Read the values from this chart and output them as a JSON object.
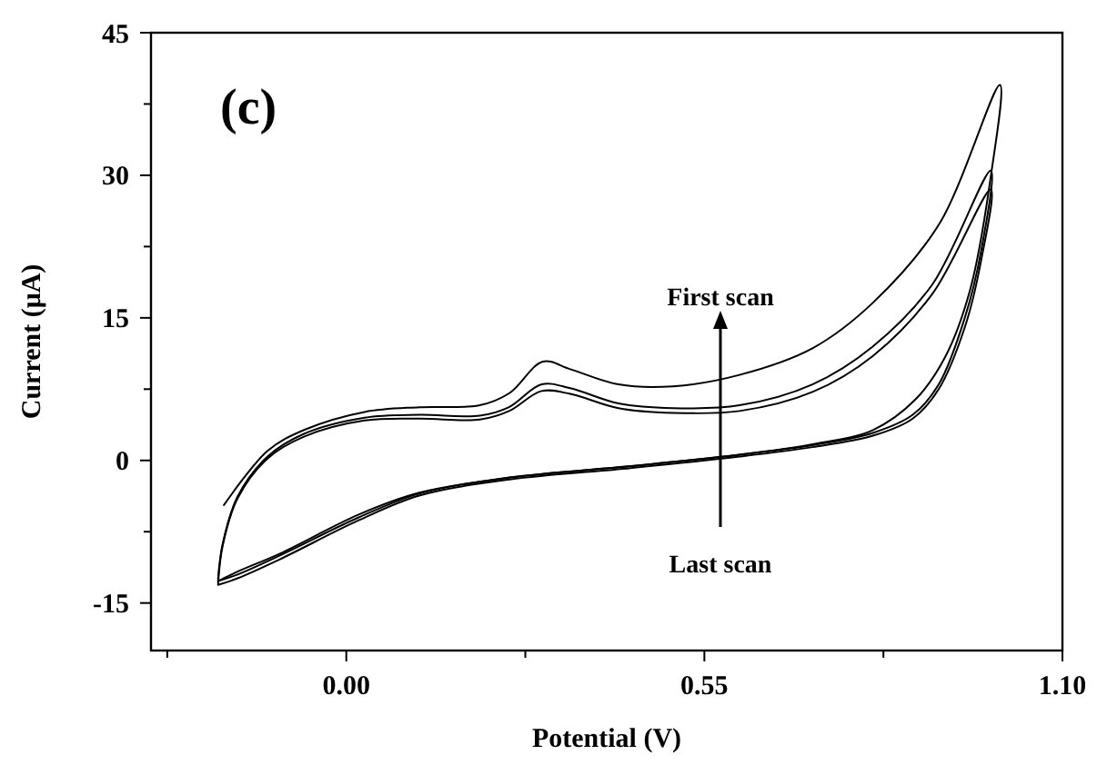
{
  "chart_data": {
    "type": "line",
    "title": "(c)",
    "xlabel": "Potential (V)",
    "ylabel": "Current (μA)",
    "xlim": [
      -0.3,
      1.1
    ],
    "xticks": [
      {
        "value": -0.275,
        "label": null
      },
      {
        "value": 0,
        "label": "0.00"
      },
      {
        "value": 0.275,
        "label": null
      },
      0.55,
      {
        "value": 0.825,
        "label": null
      },
      {
        "value": 1.1,
        "label": "1.10"
      }
    ],
    "ylim": [
      -20,
      45
    ],
    "yticks": [
      -15,
      {
        "value": -7.5,
        "label": null
      },
      0,
      {
        "value": 7.5,
        "label": null
      },
      15,
      {
        "value": 22.5,
        "label": null
      },
      30,
      {
        "value": 37.5,
        "label": null
      },
      45
    ],
    "grid": false,
    "line_style": "solid",
    "marker": "none",
    "series": [
      {
        "color": "#000000",
        "x": [
          -0.188,
          -0.121,
          -0.065,
          0.028,
          0.112,
          0.205,
          0.251,
          0.302,
          0.344,
          0.418,
          0.502,
          0.604,
          0.716,
          0.809,
          0.911,
          1.004,
          0.99,
          0.958,
          0.92,
          0.874,
          0.809,
          0.716,
          0.604,
          0.437,
          0.251,
          0.112,
          0.019,
          -0.102,
          -0.167,
          -0.197
        ],
        "values": [
          -4.7,
          1.0,
          3.2,
          5.1,
          5.6,
          5.8,
          7.1,
          10.4,
          9.6,
          8.0,
          7.8,
          9.0,
          11.8,
          16.6,
          24.9,
          39.5,
          29.9,
          17.9,
          10.9,
          6.4,
          3.2,
          1.7,
          0.6,
          -0.6,
          -1.8,
          -3.4,
          -5.7,
          -9.8,
          -11.7,
          -12.7
        ]
      },
      {
        "color": "#000000",
        "x": [
          -0.197,
          -0.19,
          -0.167,
          -0.121,
          -0.065,
          0.028,
          0.112,
          0.205,
          0.25,
          0.3,
          0.344,
          0.418,
          0.502,
          0.604,
          0.716,
          0.809,
          0.9,
          0.99,
          0.975,
          0.95,
          0.91,
          0.87,
          0.809,
          0.716,
          0.604,
          0.437,
          0.251,
          0.112,
          0.019,
          -0.102,
          -0.167,
          -0.197
        ],
        "values": [
          -12.5,
          -8.8,
          -3.8,
          0.4,
          2.8,
          4.5,
          4.8,
          4.7,
          5.6,
          8.0,
          7.6,
          6.0,
          5.5,
          5.8,
          8.0,
          12.0,
          18.5,
          30.5,
          22.0,
          15.0,
          8.0,
          4.8,
          2.9,
          1.6,
          0.6,
          -0.6,
          -1.8,
          -3.5,
          -6.0,
          -10.0,
          -12.0,
          -12.7
        ]
      },
      {
        "color": "#000000",
        "x": [
          -0.197,
          -0.19,
          -0.167,
          -0.121,
          -0.065,
          0.028,
          0.112,
          0.205,
          0.25,
          0.3,
          0.344,
          0.418,
          0.502,
          0.604,
          0.716,
          0.809,
          0.9,
          0.99,
          0.975,
          0.95,
          0.91,
          0.87,
          0.809,
          0.716,
          0.604,
          0.437,
          0.251,
          0.112,
          0.019,
          -0.102,
          -0.167,
          -0.197
        ],
        "values": [
          -13.0,
          -9.0,
          -4.0,
          0.2,
          2.5,
          4.2,
          4.4,
          4.3,
          5.2,
          7.3,
          7.0,
          5.5,
          5.0,
          5.2,
          7.2,
          11.0,
          17.5,
          28.5,
          21.0,
          14.0,
          7.5,
          4.4,
          2.6,
          1.4,
          0.4,
          -0.8,
          -2.0,
          -3.7,
          -6.3,
          -10.4,
          -12.4,
          -13.1
        ]
      }
    ],
    "annotations": [
      "First scan",
      "Last scan"
    ]
  }
}
